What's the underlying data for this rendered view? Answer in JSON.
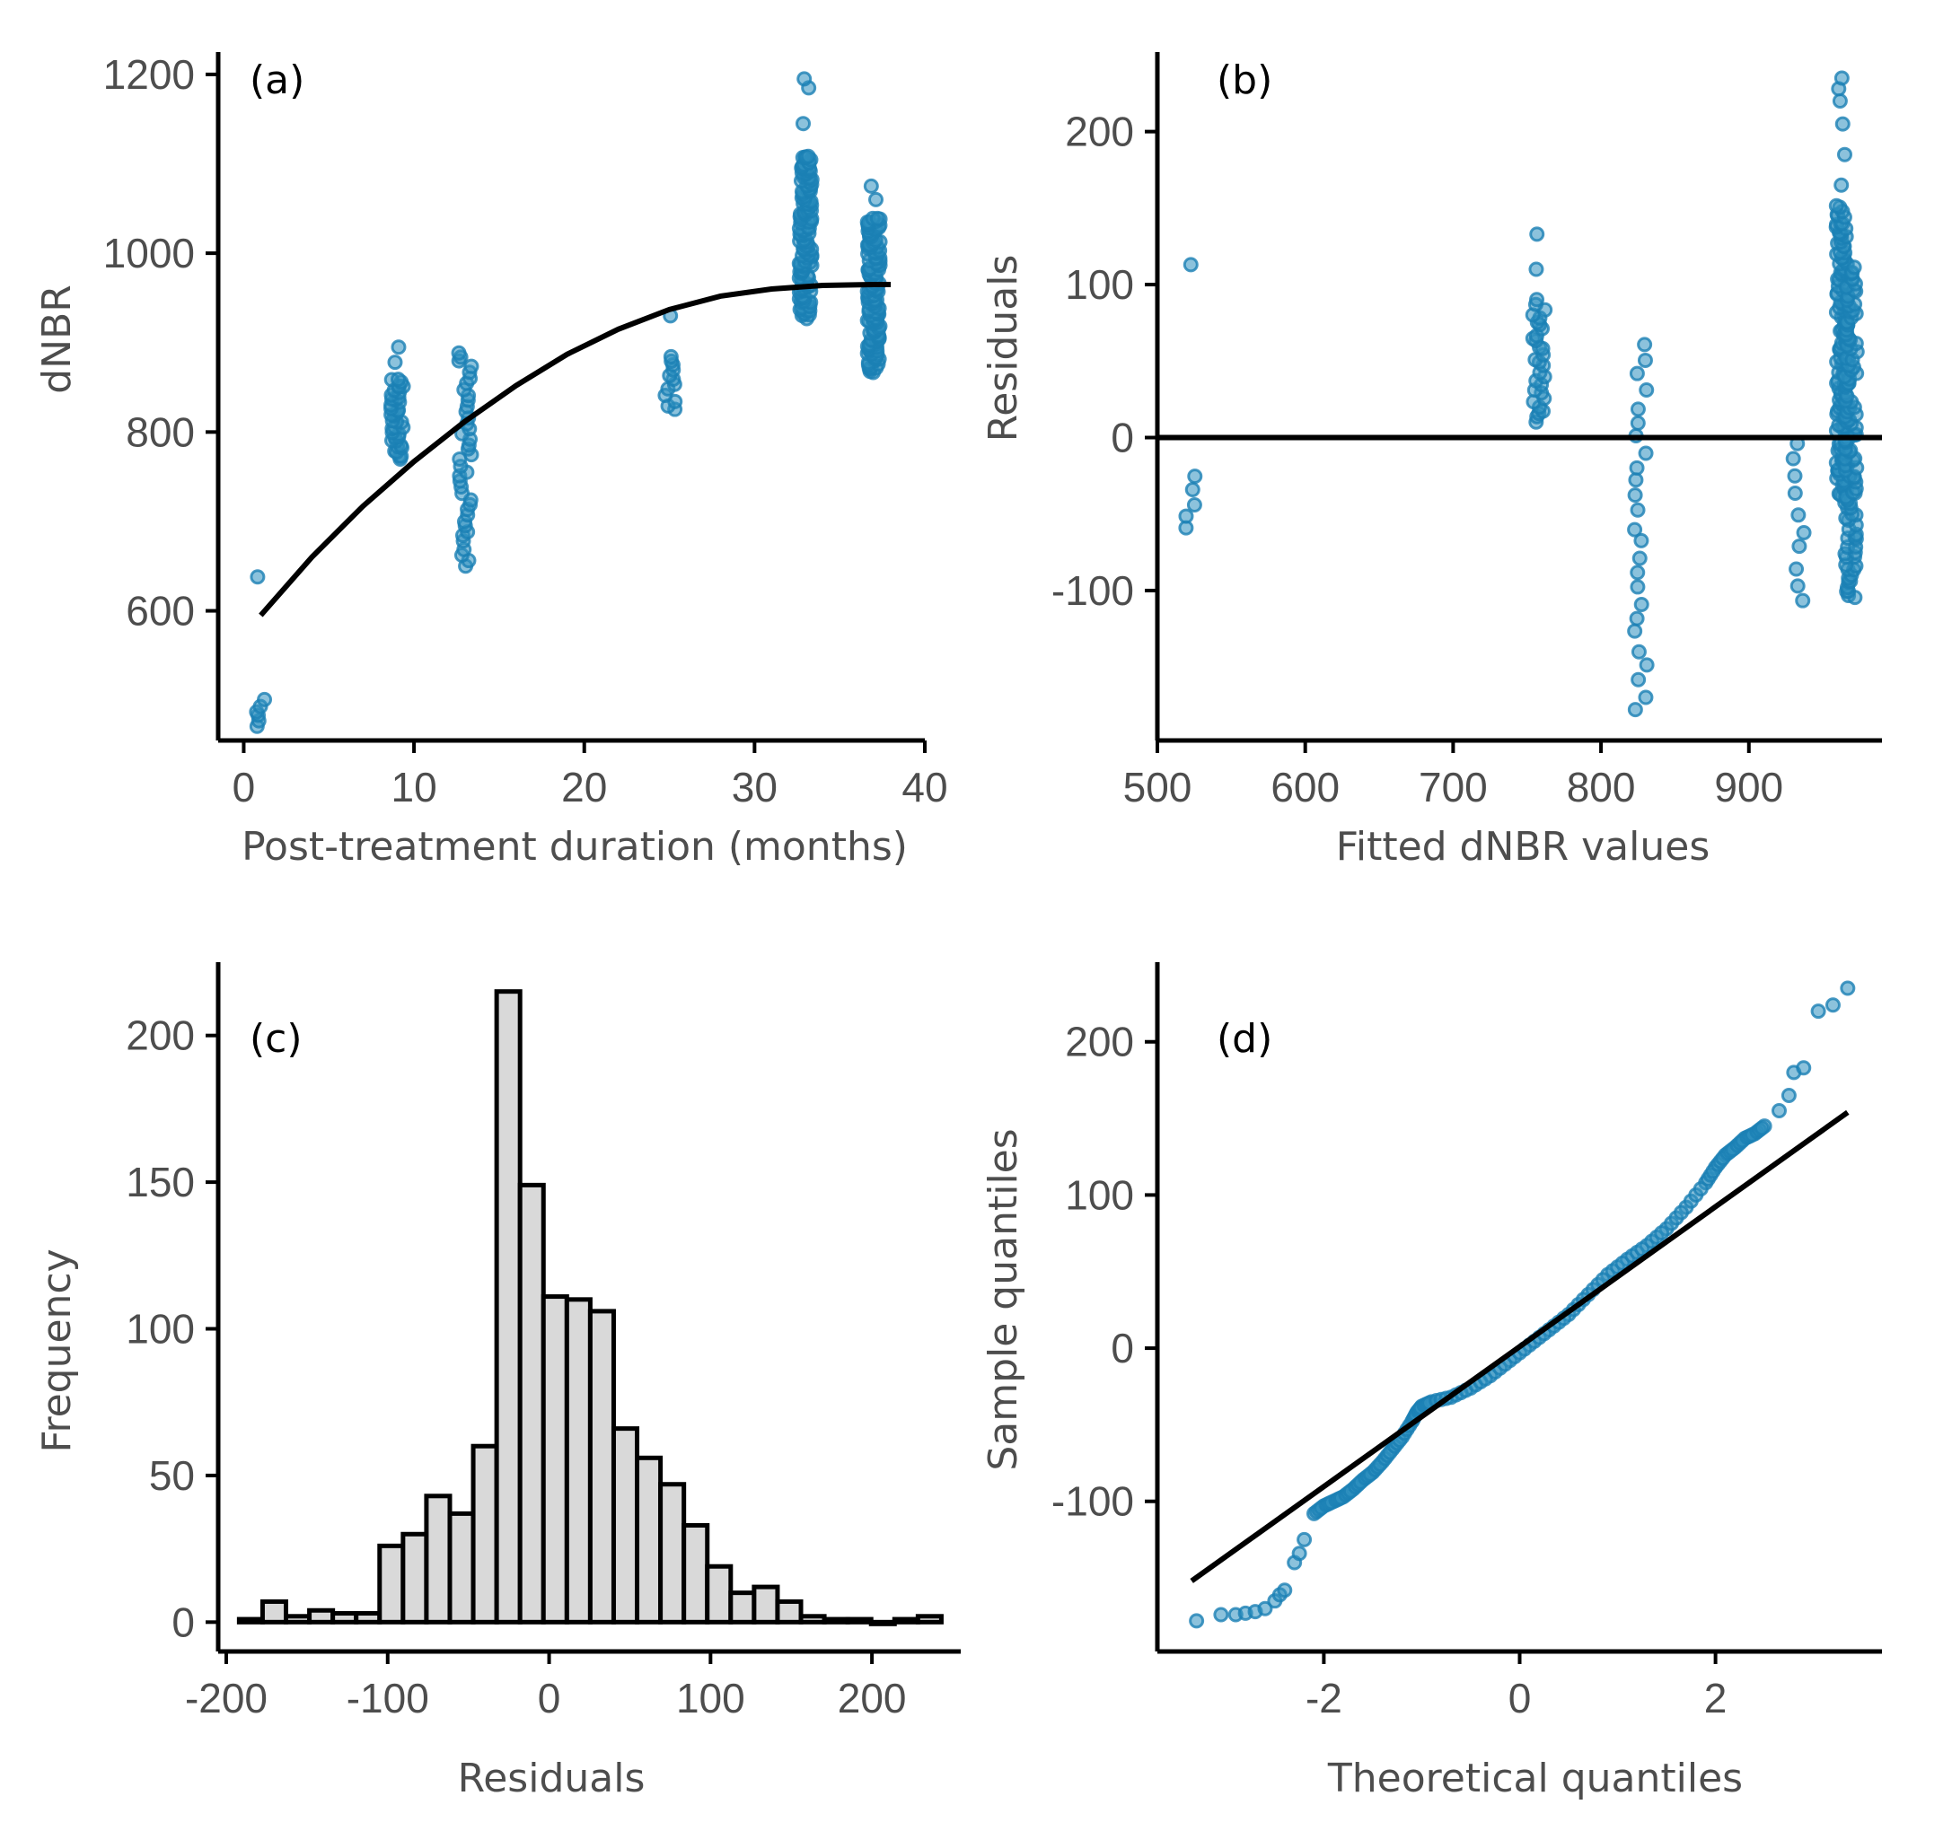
{
  "colors": {
    "points": "#1a7fb4",
    "bar_fill": "#d9d9d9",
    "line": "#000000",
    "text": "#4d4d4d"
  },
  "chart_data": [
    {
      "panel": "(a)",
      "type": "scatter",
      "xlabel": "Post-treatment duration (months)",
      "ylabel": "dNBR",
      "xlim": [
        -1.5,
        40
      ],
      "ylim": [
        455,
        1225
      ],
      "xticks": [
        0,
        10,
        20,
        30,
        40
      ],
      "yticks": [
        600,
        800,
        1000,
        1200
      ],
      "clusters": [
        {
          "x": 1,
          "n": 6,
          "ymin": 470,
          "ymax": 500,
          "extra": [
            638
          ]
        },
        {
          "x": 9,
          "n": 40,
          "ymin": 770,
          "ymax": 860,
          "extra": [
            878,
            895
          ]
        },
        {
          "x": 13,
          "n": 40,
          "ymin": 652,
          "ymax": 890
        },
        {
          "x": 25,
          "n": 12,
          "ymin": 825,
          "ymax": 885,
          "extra": [
            930
          ]
        },
        {
          "x": 33,
          "n": 130,
          "ymin": 928,
          "ymax": 1110,
          "extra": [
            1145,
            1185,
            1195
          ]
        },
        {
          "x": 37,
          "n": 140,
          "ymin": 868,
          "ymax": 1040,
          "extra": [
            1060,
            1075
          ]
        }
      ],
      "fit_curve": {
        "x": [
          1,
          4,
          7,
          10,
          13,
          16,
          19,
          22,
          25,
          28,
          31,
          34,
          37,
          38
        ],
        "y": [
          595,
          660,
          717,
          767,
          812,
          852,
          887,
          915,
          937,
          952,
          960,
          964,
          965,
          965
        ]
      }
    },
    {
      "panel": "(b)",
      "type": "scatter",
      "xlabel": "Fitted dNBR values",
      "ylabel": "Residuals",
      "xlim": [
        500,
        990
      ],
      "ylim": [
        -198,
        252
      ],
      "xticks": [
        500,
        600,
        700,
        800,
        900
      ],
      "yticks": [
        -100,
        0,
        100,
        200
      ],
      "clusters": [
        {
          "x": 522,
          "n": 5,
          "ymin": -60,
          "ymax": -25,
          "extra": [
            113
          ]
        },
        {
          "x": 758,
          "n": 30,
          "ymin": 10,
          "ymax": 90,
          "extra": [
            110,
            133
          ]
        },
        {
          "x": 827,
          "n": 25,
          "ymin": -178,
          "ymax": 60
        },
        {
          "x": 934,
          "n": 10,
          "ymin": -108,
          "ymax": -3
        },
        {
          "x": 963,
          "n": 140,
          "ymin": -40,
          "ymax": 150,
          "extra": [
            165,
            185,
            205,
            220,
            228,
            235
          ]
        },
        {
          "x": 969,
          "n": 110,
          "ymin": -105,
          "ymax": 110
        }
      ],
      "hline": 0
    },
    {
      "panel": "(c)",
      "type": "bar",
      "xlabel": "Residuals",
      "ylabel": "Frequency",
      "xlim": [
        -205,
        255
      ],
      "ylim": [
        -10,
        225
      ],
      "xticks": [
        -200,
        -100,
        0,
        100,
        200
      ],
      "yticks": [
        0,
        50,
        100,
        150,
        200
      ],
      "bin_width": 14.5,
      "bin_start": -192,
      "values": [
        1,
        7,
        2,
        4,
        3,
        3,
        26,
        30,
        43,
        37,
        60,
        215,
        149,
        111,
        110,
        106,
        66,
        56,
        47,
        33,
        19,
        10,
        12,
        7,
        2,
        1,
        1,
        0,
        1,
        2
      ]
    },
    {
      "panel": "(d)",
      "type": "scatter",
      "xlabel": "Theoretical quantiles",
      "ylabel": "Sample quantiles",
      "xlim": [
        -3.7,
        3.7
      ],
      "ylim": [
        -198,
        252
      ],
      "xticks": [
        -2,
        0,
        2
      ],
      "yticks": [
        -100,
        0,
        100,
        200
      ],
      "qq_points": {
        "x": [
          -3.3,
          -3.05,
          -2.9,
          -2.8,
          -2.7,
          -2.6,
          -2.5,
          -2.45,
          -2.4,
          -2.3,
          -2.25,
          -2.2,
          -2.1,
          -2.0,
          -1.9,
          -1.8,
          -1.7,
          -1.6,
          -1.5,
          -1.4,
          -1.3,
          -1.2,
          -1.1,
          -1.05,
          -1.0,
          -0.9,
          -0.7,
          -0.5,
          -0.3,
          -0.1,
          0.1,
          0.3,
          0.5,
          0.7,
          0.9,
          1.1,
          1.3,
          1.5,
          1.7,
          1.9,
          2.0,
          2.1,
          2.2,
          2.3,
          2.4,
          2.5,
          2.65,
          2.75,
          2.8,
          2.9,
          3.05,
          3.2,
          3.35
        ],
        "y": [
          -178,
          -174,
          -174,
          -173,
          -172,
          -170,
          -165,
          -161,
          -158,
          -140,
          -134,
          -125,
          -108,
          -103,
          -100,
          -97,
          -92,
          -86,
          -81,
          -74,
          -66,
          -58,
          -48,
          -42,
          -38,
          -35,
          -32,
          -26,
          -18,
          -8,
          2,
          12,
          22,
          35,
          48,
          58,
          67,
          78,
          92,
          108,
          118,
          126,
          131,
          137,
          140,
          145,
          155,
          165,
          180,
          183,
          220,
          224,
          235
        ]
      },
      "ref_line": {
        "x": [
          -3.35,
          3.35
        ],
        "y": [
          -152,
          154
        ]
      }
    }
  ]
}
